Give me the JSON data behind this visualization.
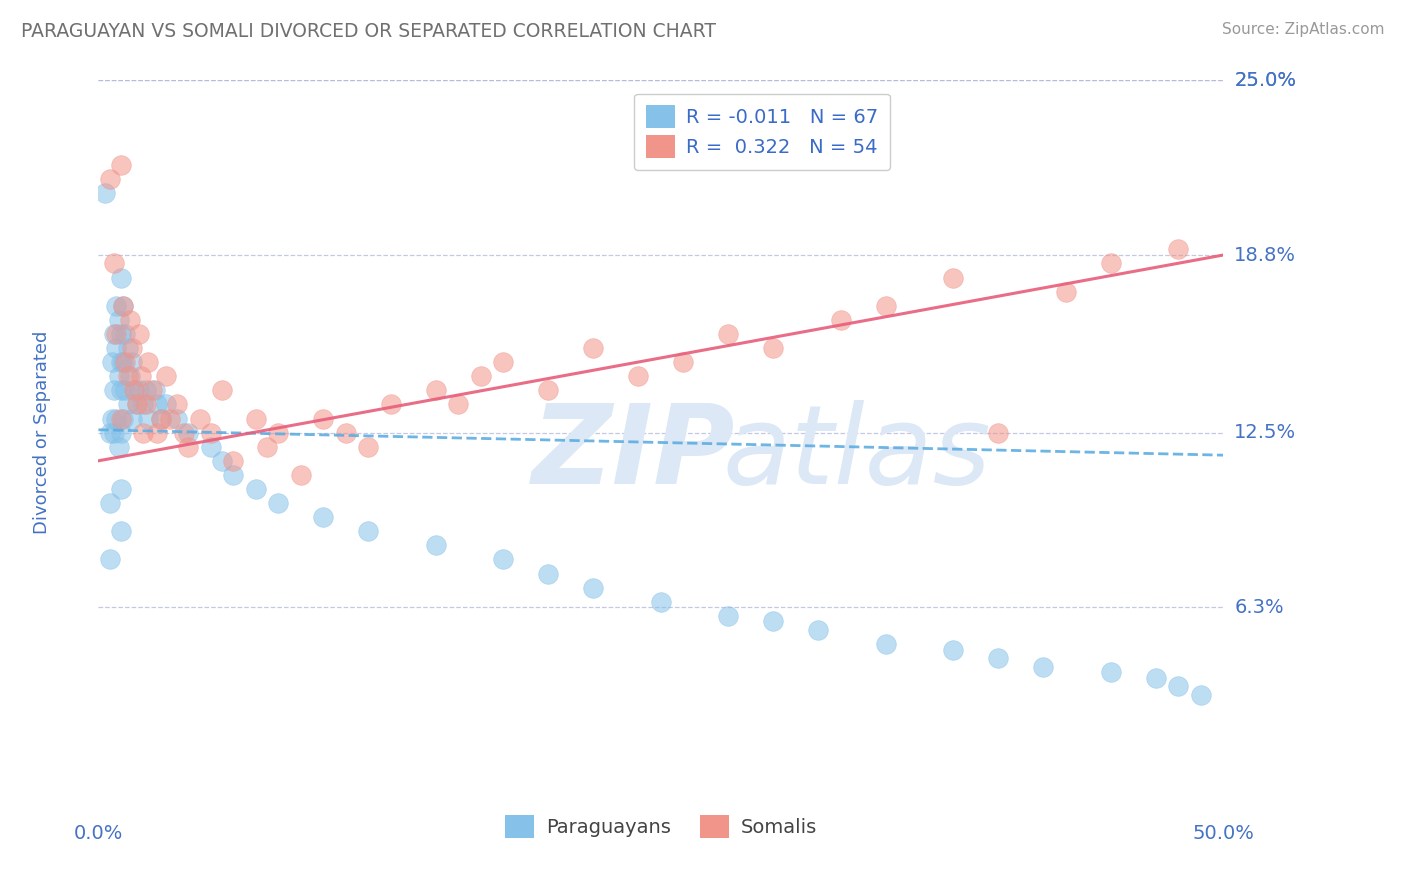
{
  "title": "PARAGUAYAN VS SOMALI DIVORCED OR SEPARATED CORRELATION CHART",
  "source": "Source: ZipAtlas.com",
  "ylabel": "Divorced or Separated",
  "xlim": [
    0.0,
    50.0
  ],
  "ylim": [
    0.0,
    25.0
  ],
  "ytick_values": [
    6.3,
    12.5,
    18.8,
    25.0
  ],
  "ytick_labels": [
    "6.3%",
    "12.5%",
    "18.8%",
    "25.0%"
  ],
  "paraguayan_color": "#85c1e9",
  "somali_color": "#f1948a",
  "paraguayan_line_color": "#5dade2",
  "somali_line_color": "#e85d7a",
  "axis_color": "#4472c4",
  "grid_color": "#b0b8d8",
  "background_color": "#ffffff",
  "watermark_color": "#dce8f5",
  "title_color": "#707070",
  "source_color": "#999999",
  "legend_text_color": "#3a6bc9",
  "bottom_legend_text_color": "#444444",
  "R_paraguayan": "-0.011",
  "N_paraguayan": "67",
  "R_somali": "0.322",
  "N_somali": "54",
  "blue_line_x0": 0.0,
  "blue_line_x1": 50.0,
  "blue_line_y0": 12.6,
  "blue_line_y1": 11.7,
  "pink_line_x0": 0.0,
  "pink_line_x1": 50.0,
  "pink_line_y0": 11.5,
  "pink_line_y1": 18.8,
  "para_x": [
    0.3,
    0.5,
    0.5,
    0.5,
    0.6,
    0.6,
    0.7,
    0.7,
    0.7,
    0.8,
    0.8,
    0.8,
    0.9,
    0.9,
    0.9,
    1.0,
    1.0,
    1.0,
    1.0,
    1.0,
    1.1,
    1.1,
    1.1,
    1.2,
    1.2,
    1.3,
    1.3,
    1.4,
    1.5,
    1.5,
    1.6,
    1.7,
    1.8,
    2.0,
    2.1,
    2.2,
    2.5,
    2.6,
    2.8,
    3.0,
    3.5,
    4.0,
    5.0,
    5.5,
    6.0,
    7.0,
    8.0,
    10.0,
    12.0,
    15.0,
    18.0,
    20.0,
    22.0,
    25.0,
    28.0,
    30.0,
    32.0,
    35.0,
    38.0,
    40.0,
    42.0,
    45.0,
    47.0,
    48.0,
    49.0,
    1.0,
    1.0
  ],
  "para_y": [
    21.0,
    12.5,
    10.0,
    8.0,
    15.0,
    13.0,
    16.0,
    14.0,
    12.5,
    17.0,
    15.5,
    13.0,
    16.5,
    14.5,
    12.0,
    18.0,
    16.0,
    14.0,
    12.5,
    10.5,
    17.0,
    15.0,
    13.0,
    16.0,
    14.0,
    15.5,
    13.5,
    14.5,
    15.0,
    13.0,
    14.0,
    13.5,
    14.0,
    13.5,
    14.0,
    13.0,
    14.0,
    13.5,
    13.0,
    13.5,
    13.0,
    12.5,
    12.0,
    11.5,
    11.0,
    10.5,
    10.0,
    9.5,
    9.0,
    8.5,
    8.0,
    7.5,
    7.0,
    6.5,
    6.0,
    5.8,
    5.5,
    5.0,
    4.8,
    4.5,
    4.2,
    4.0,
    3.8,
    3.5,
    3.2,
    15.0,
    9.0
  ],
  "som_x": [
    0.5,
    0.7,
    0.8,
    1.0,
    1.0,
    1.1,
    1.2,
    1.3,
    1.4,
    1.5,
    1.6,
    1.7,
    1.8,
    1.9,
    2.0,
    2.1,
    2.2,
    2.4,
    2.6,
    2.8,
    3.0,
    3.2,
    3.5,
    3.8,
    4.0,
    4.5,
    5.0,
    5.5,
    6.0,
    7.0,
    7.5,
    8.0,
    9.0,
    10.0,
    11.0,
    12.0,
    13.0,
    15.0,
    16.0,
    17.0,
    18.0,
    20.0,
    22.0,
    24.0,
    26.0,
    28.0,
    30.0,
    33.0,
    35.0,
    38.0,
    40.0,
    43.0,
    45.0,
    48.0
  ],
  "som_y": [
    21.5,
    18.5,
    16.0,
    22.0,
    13.0,
    17.0,
    15.0,
    14.5,
    16.5,
    15.5,
    14.0,
    13.5,
    16.0,
    14.5,
    12.5,
    13.5,
    15.0,
    14.0,
    12.5,
    13.0,
    14.5,
    13.0,
    13.5,
    12.5,
    12.0,
    13.0,
    12.5,
    14.0,
    11.5,
    13.0,
    12.0,
    12.5,
    11.0,
    13.0,
    12.5,
    12.0,
    13.5,
    14.0,
    13.5,
    14.5,
    15.0,
    14.0,
    15.5,
    14.5,
    15.0,
    16.0,
    15.5,
    16.5,
    17.0,
    18.0,
    12.5,
    17.5,
    18.5,
    19.0
  ]
}
